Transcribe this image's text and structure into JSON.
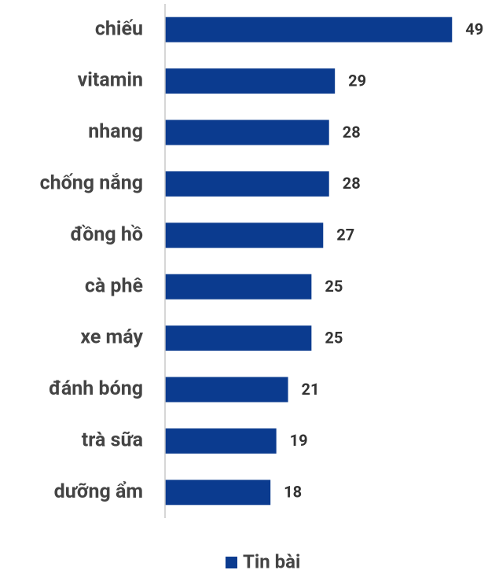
{
  "chart_data": {
    "type": "barh",
    "categories": [
      "chiếu",
      "vitamin",
      "nhang",
      "chống nắng",
      "đồng hồ",
      "cà phê",
      "xe máy",
      "đánh bóng",
      "trà sữa",
      "dưỡng ẩm"
    ],
    "series": [
      {
        "name": "Tin bài",
        "color": "#0b3b8f",
        "values": [
          49,
          29,
          28,
          28,
          27,
          25,
          25,
          21,
          19,
          18
        ]
      }
    ],
    "xlim": [
      0,
      55
    ],
    "legend": "bottom"
  }
}
